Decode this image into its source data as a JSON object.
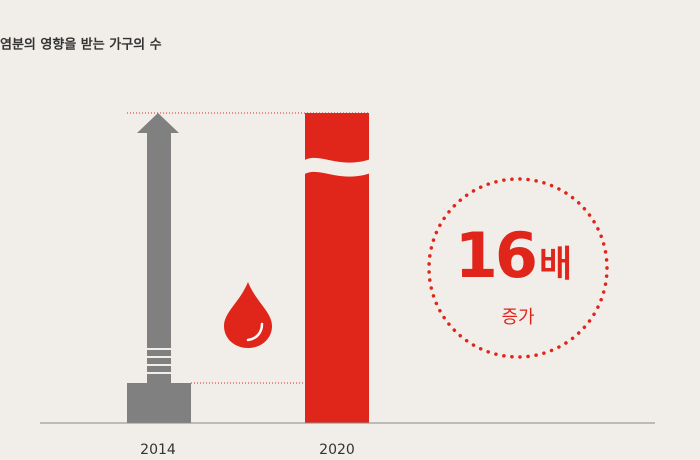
{
  "header": {
    "title": "염분의 영향을 받는 가구의 수"
  },
  "columns": [
    "2014",
    "2020"
  ],
  "callout": {
    "number": "16",
    "unit": "배",
    "caption": "증가"
  }
}
